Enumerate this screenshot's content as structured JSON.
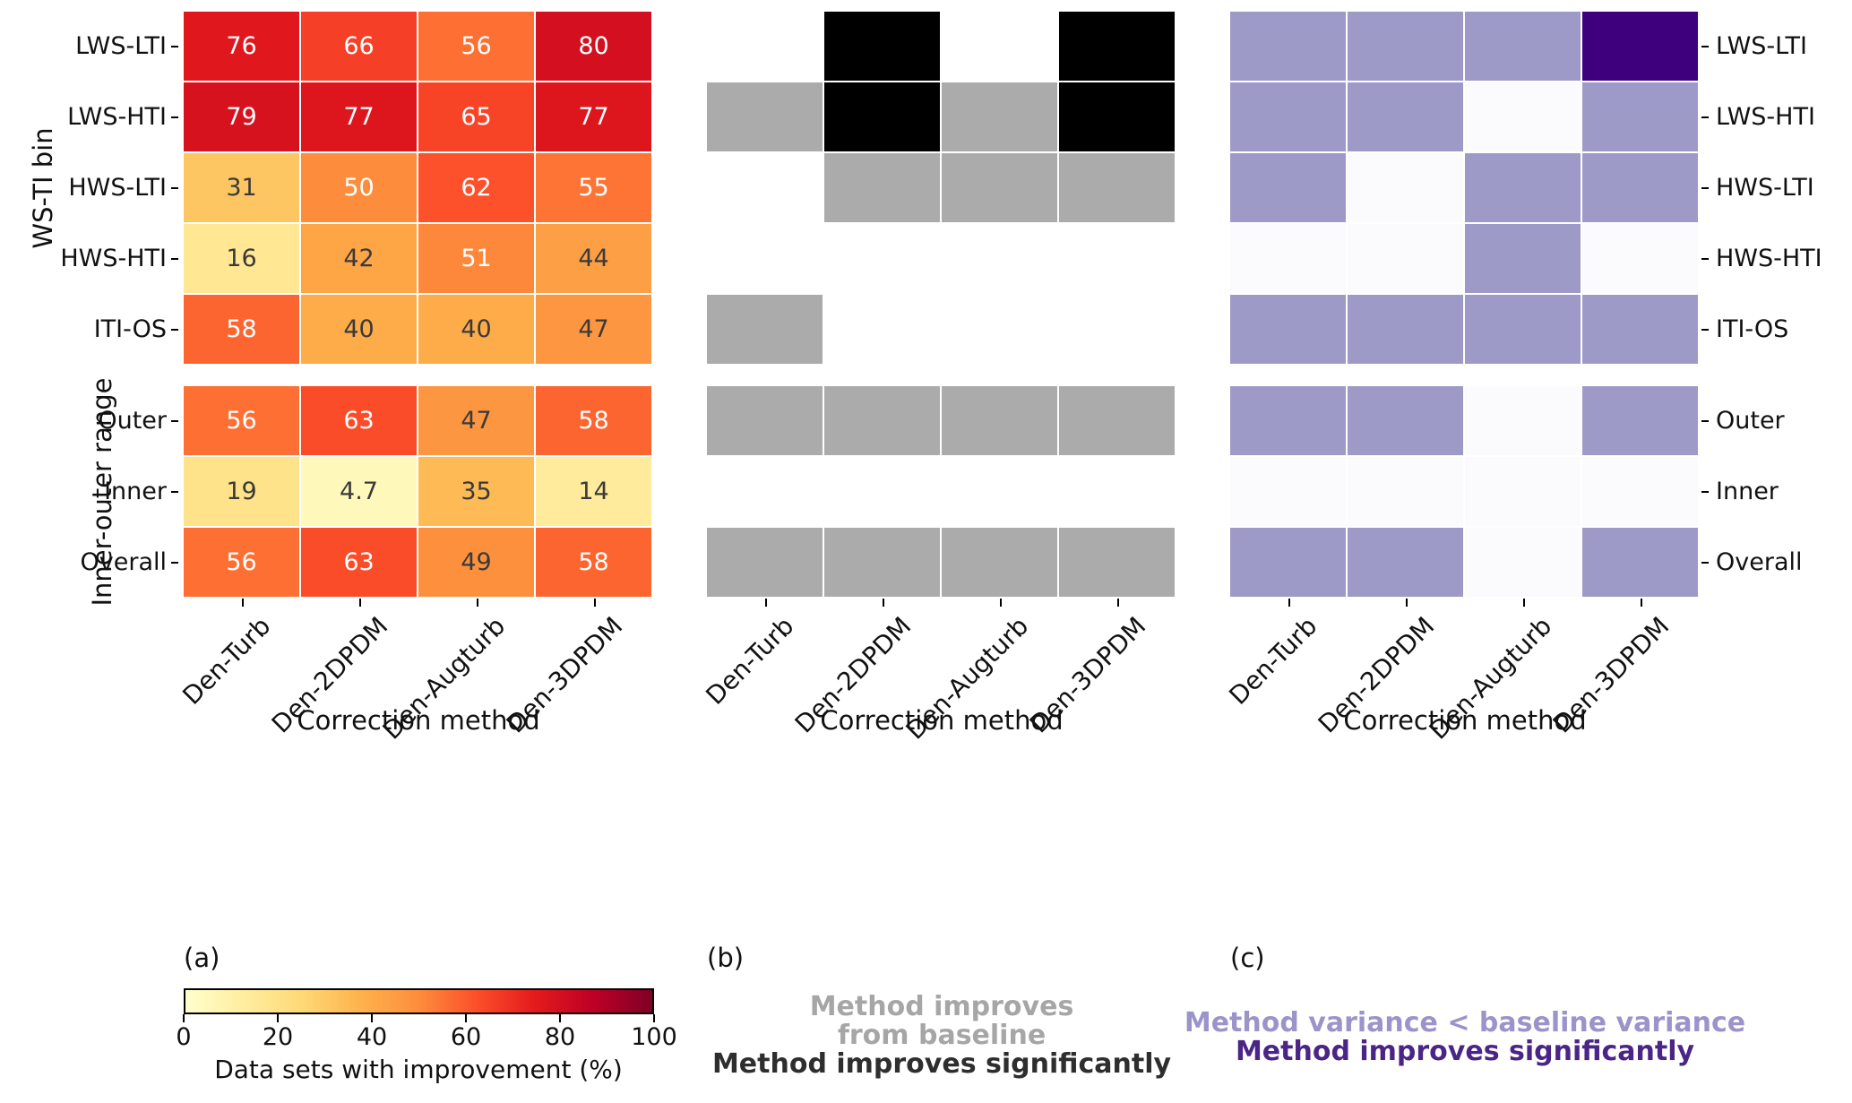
{
  "chart_data": {
    "type": "heatmap",
    "columns": [
      "Den-Turb",
      "Den-2DPDM",
      "Den-Augturb",
      "Den-3DPDM"
    ],
    "row_groups": [
      {
        "label": "WS-TI bin",
        "rows": [
          "LWS-LTI",
          "LWS-HTI",
          "HWS-LTI",
          "HWS-HTI",
          "ITI-OS"
        ]
      },
      {
        "label": "Inner-outer range",
        "rows": [
          "Outer",
          "Inner",
          "Overall"
        ]
      }
    ],
    "xlabel": "Correction method",
    "panels": [
      {
        "letter": "(a)",
        "kind": "percent_values",
        "colormap": "YlOrRd",
        "values": [
          [
            76,
            66,
            56,
            80
          ],
          [
            79,
            77,
            65,
            77
          ],
          [
            31,
            50,
            62,
            55
          ],
          [
            16,
            42,
            51,
            44
          ],
          [
            58,
            40,
            40,
            47
          ],
          [
            56,
            63,
            47,
            58
          ],
          [
            19,
            4.7,
            35,
            14
          ],
          [
            56,
            63,
            49,
            58
          ]
        ],
        "colorbar": {
          "min": 0,
          "max": 100,
          "ticks": [
            0,
            20,
            40,
            60,
            80,
            100
          ],
          "label": "Data sets with improvement (%)"
        }
      },
      {
        "letter": "(b)",
        "kind": "category_flags",
        "cell_colors": {
          "improves": "#ababab",
          "improves_significantly": "#000000"
        },
        "cells": [
          [
            null,
            "improves_significantly",
            null,
            "improves_significantly"
          ],
          [
            "improves",
            "improves_significantly",
            "improves",
            "improves_significantly"
          ],
          [
            null,
            "improves",
            "improves",
            "improves"
          ],
          [
            null,
            null,
            null,
            null
          ],
          [
            "improves",
            null,
            null,
            null
          ],
          [
            "improves",
            "improves",
            "improves",
            "improves"
          ],
          [
            null,
            null,
            null,
            null
          ],
          [
            "improves",
            "improves",
            "improves",
            "improves"
          ]
        ],
        "legend": [
          {
            "label": "Method improves\nfrom baseline",
            "color": "#a6a6a6"
          },
          {
            "label": "Method improves significantly",
            "color": "#2e2e2e"
          }
        ]
      },
      {
        "letter": "(c)",
        "kind": "category_flags",
        "row_labels_side": "right",
        "cell_colors": {
          "variance_lower": "#9e9ac8",
          "improves_significantly": "#3f007d",
          "none": "#fbfafd"
        },
        "cells": [
          [
            "variance_lower",
            "variance_lower",
            "variance_lower",
            "improves_significantly"
          ],
          [
            "variance_lower",
            "variance_lower",
            "none",
            "variance_lower"
          ],
          [
            "variance_lower",
            "none",
            "variance_lower",
            "variance_lower"
          ],
          [
            "none",
            "none",
            "variance_lower",
            "none"
          ],
          [
            "variance_lower",
            "variance_lower",
            "variance_lower",
            "variance_lower"
          ],
          [
            "variance_lower",
            "variance_lower",
            "none",
            "variance_lower"
          ],
          [
            "none",
            "none",
            "none",
            "none"
          ],
          [
            "variance_lower",
            "variance_lower",
            "none",
            "variance_lower"
          ]
        ],
        "legend": [
          {
            "label": "Method variance < baseline variance",
            "color": "#9b94cb"
          },
          {
            "label": "Method improves significantly",
            "color": "#4b2586"
          }
        ]
      }
    ]
  }
}
